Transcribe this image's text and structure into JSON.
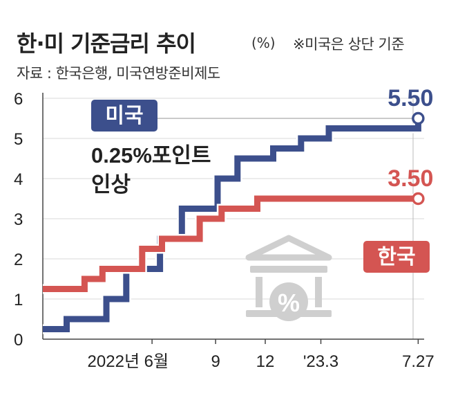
{
  "header": {
    "title": "한·미 기준금리 추이",
    "unit": "(%)",
    "note": "※미국은 상단 기준",
    "source": "자료 : 한국은행, 미국연방준비제도"
  },
  "annotation": {
    "line1": "0.25%포인트",
    "line2": "인상"
  },
  "colors": {
    "us": "#3c4f8c",
    "kr": "#d45552",
    "icon": "#cfcfcf"
  },
  "icon": {
    "name": "bank-percent-icon",
    "label": "%"
  },
  "chart_data": {
    "type": "line",
    "step": true,
    "ylim": [
      0,
      6
    ],
    "yticks": [
      "0",
      "1",
      "2",
      "3",
      "4",
      "5",
      "6"
    ],
    "xticks": [
      {
        "label": "2022년 6월",
        "x": 5.5
      },
      {
        "label": "9",
        "x": 8.7
      },
      {
        "label": "12",
        "x": 11.2
      },
      {
        "label": "'23.3",
        "x": 14.0
      },
      {
        "label": "7.27",
        "x": 18.9
      }
    ],
    "xlim": [
      0,
      19.2
    ],
    "series": [
      {
        "name": "미국",
        "color": "#3c4f8c",
        "end_label": "5.50",
        "points": [
          [
            0,
            0.25
          ],
          [
            1.2,
            0.25
          ],
          [
            1.2,
            0.5
          ],
          [
            3.2,
            0.5
          ],
          [
            3.2,
            1.0
          ],
          [
            4.2,
            1.0
          ],
          [
            4.2,
            1.75
          ],
          [
            5.4,
            1.75
          ],
          [
            5.4,
            1.75
          ],
          [
            5.4,
            1.75
          ],
          [
            5.9,
            1.75
          ],
          [
            5.9,
            2.5
          ],
          [
            6.2,
            2.5
          ],
          [
            7.0,
            2.5
          ],
          [
            7.0,
            3.25
          ],
          [
            8.4,
            3.25
          ],
          [
            8.4,
            3.25
          ],
          [
            8.8,
            3.25
          ],
          [
            8.8,
            4.0
          ],
          [
            9.8,
            4.0
          ],
          [
            9.8,
            4.5
          ],
          [
            11.6,
            4.5
          ],
          [
            11.6,
            4.75
          ],
          [
            13.0,
            4.75
          ],
          [
            13.0,
            5.0
          ],
          [
            14.4,
            5.0
          ],
          [
            14.4,
            5.25
          ],
          [
            17.2,
            5.25
          ],
          [
            17.2,
            5.25
          ],
          [
            18.9,
            5.25
          ],
          [
            18.9,
            5.5
          ]
        ]
      },
      {
        "name": "한국",
        "color": "#d45552",
        "end_label": "3.50",
        "points": [
          [
            0,
            1.25
          ],
          [
            2.1,
            1.25
          ],
          [
            2.1,
            1.5
          ],
          [
            3.0,
            1.5
          ],
          [
            3.0,
            1.75
          ],
          [
            5.0,
            1.75
          ],
          [
            5.0,
            2.25
          ],
          [
            6.0,
            2.25
          ],
          [
            6.0,
            2.5
          ],
          [
            7.9,
            2.5
          ],
          [
            7.9,
            3.0
          ],
          [
            9.0,
            3.0
          ],
          [
            9.0,
            3.25
          ],
          [
            10.8,
            3.25
          ],
          [
            10.8,
            3.5
          ],
          [
            18.9,
            3.5
          ]
        ]
      }
    ]
  }
}
